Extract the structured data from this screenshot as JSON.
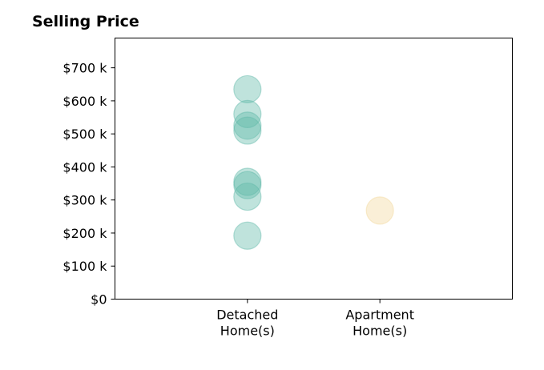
{
  "chart_data": {
    "type": "scatter",
    "title": "Selling Price",
    "xlabel": "",
    "ylabel": "",
    "categories": [
      [
        "Detached",
        "Home(s)"
      ],
      [
        "Apartment",
        "Home(s)"
      ]
    ],
    "ylim": [
      0,
      790000
    ],
    "yticks": [
      0,
      100000,
      200000,
      300000,
      400000,
      500000,
      600000,
      700000
    ],
    "ytick_labels": [
      "$0",
      "$100 k",
      "$200 k",
      "$300 k",
      "$400 k",
      "$500 k",
      "$600 k",
      "$700 k"
    ],
    "grid": false,
    "series": [
      {
        "category_index": 0,
        "color": "#5fb8a8",
        "values": [
          635000,
          560000,
          525000,
          510000,
          355000,
          345000,
          310000,
          192000
        ]
      },
      {
        "category_index": 1,
        "color": "#f2d79a",
        "values": [
          268000
        ]
      }
    ]
  }
}
